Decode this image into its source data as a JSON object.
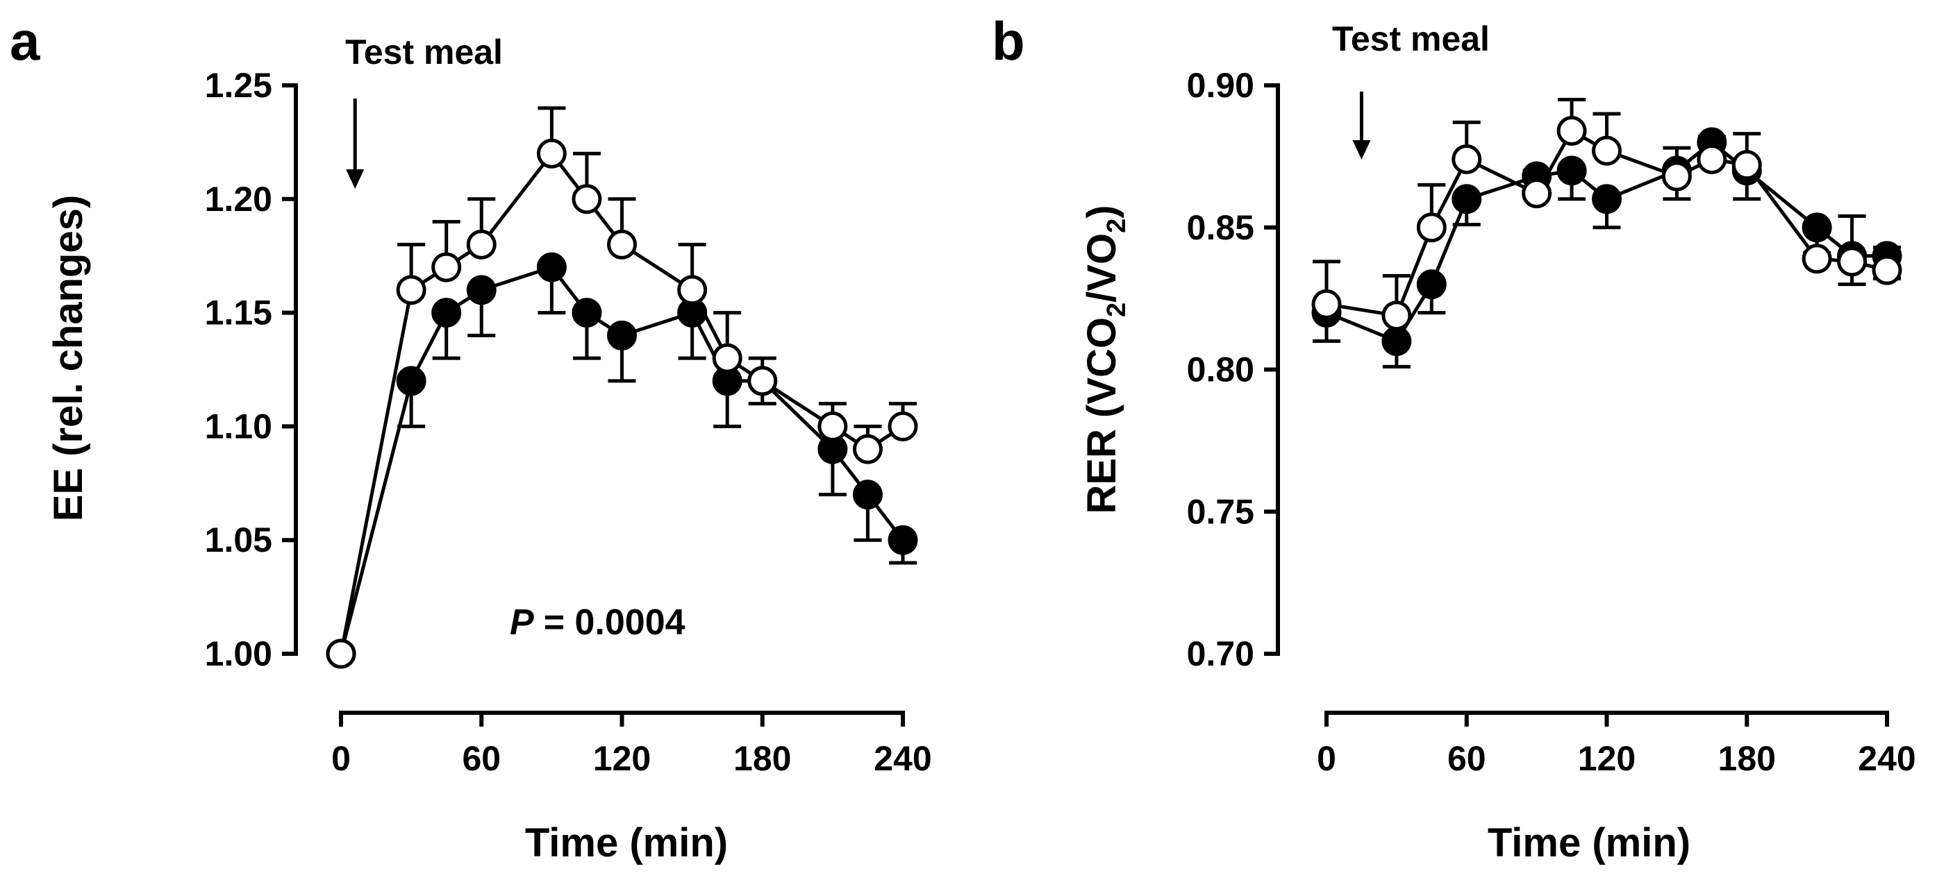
{
  "chart_data": [
    {
      "panel": "a",
      "type": "line",
      "xlabel": "Time (min)",
      "ylabel": "EE (rel. changes)",
      "xlim": [
        0,
        240
      ],
      "ylim": [
        1.0,
        1.25
      ],
      "xticks": [
        "0",
        "60",
        "120",
        "180",
        "240"
      ],
      "yticks": [
        "1.00",
        "1.05",
        "1.10",
        "1.15",
        "1.20",
        "1.25"
      ],
      "annotation": "Test meal",
      "annotation_x": 6,
      "p_label": "P",
      "p_value": "= 0.0004",
      "series": [
        {
          "name": "open circles",
          "marker": "open",
          "x": [
            0,
            30,
            45,
            60,
            90,
            105,
            120,
            150,
            165,
            180,
            210,
            225,
            240
          ],
          "y": [
            1.0,
            1.16,
            1.17,
            1.18,
            1.22,
            1.2,
            1.18,
            1.16,
            1.13,
            1.12,
            1.1,
            1.09,
            1.1
          ],
          "err": [
            0,
            0.02,
            0.02,
            0.02,
            0.02,
            0.02,
            0.02,
            0.02,
            0.02,
            0.01,
            0.01,
            0.01,
            0.01
          ]
        },
        {
          "name": "filled circles",
          "marker": "filled",
          "x": [
            0,
            30,
            45,
            60,
            90,
            105,
            120,
            150,
            165,
            180,
            210,
            225,
            240
          ],
          "y": [
            1.0,
            1.12,
            1.15,
            1.16,
            1.17,
            1.15,
            1.14,
            1.15,
            1.12,
            1.12,
            1.09,
            1.07,
            1.05
          ],
          "err": [
            0,
            0.02,
            0.02,
            0.02,
            0.02,
            0.02,
            0.02,
            0.02,
            0.02,
            0.01,
            0.02,
            0.02,
            0.01
          ]
        }
      ]
    },
    {
      "panel": "b",
      "type": "line",
      "xlabel": "Time (min)",
      "ylabel_main": "RER (VCO",
      "ylabel_sub": "2",
      "ylabel_mid": "/VO",
      "ylabel_end": ")",
      "xlim": [
        0,
        240
      ],
      "ylim": [
        0.7,
        0.9
      ],
      "xticks": [
        "0",
        "60",
        "120",
        "180",
        "240"
      ],
      "yticks": [
        "0.70",
        "0.75",
        "0.80",
        "0.85",
        "0.90"
      ],
      "annotation": "Test meal",
      "annotation_x": 15,
      "series": [
        {
          "name": "open circles",
          "marker": "open",
          "x": [
            0,
            30,
            45,
            60,
            90,
            105,
            120,
            150,
            165,
            180,
            210,
            225,
            240
          ],
          "y": [
            0.823,
            0.819,
            0.85,
            0.874,
            0.862,
            0.884,
            0.877,
            0.868,
            0.874,
            0.872,
            0.839,
            0.838,
            0.835
          ],
          "err": [
            0.015,
            0.014,
            0.015,
            0.013,
            0.008,
            0.011,
            0.013,
            0.01,
            0.008,
            0.011,
            0.011,
            0.016,
            0.008
          ]
        },
        {
          "name": "filled circles",
          "marker": "filled",
          "x": [
            0,
            30,
            45,
            60,
            90,
            105,
            120,
            150,
            165,
            180,
            210,
            225,
            240
          ],
          "y": [
            0.82,
            0.81,
            0.83,
            0.86,
            0.868,
            0.87,
            0.86,
            0.87,
            0.88,
            0.87,
            0.85,
            0.84,
            0.84
          ],
          "err": [
            0.01,
            0.009,
            0.01,
            0.009,
            0.005,
            0.01,
            0.01,
            0.01,
            0.007,
            0.01,
            0.009,
            0.01,
            0.008
          ]
        }
      ]
    }
  ]
}
